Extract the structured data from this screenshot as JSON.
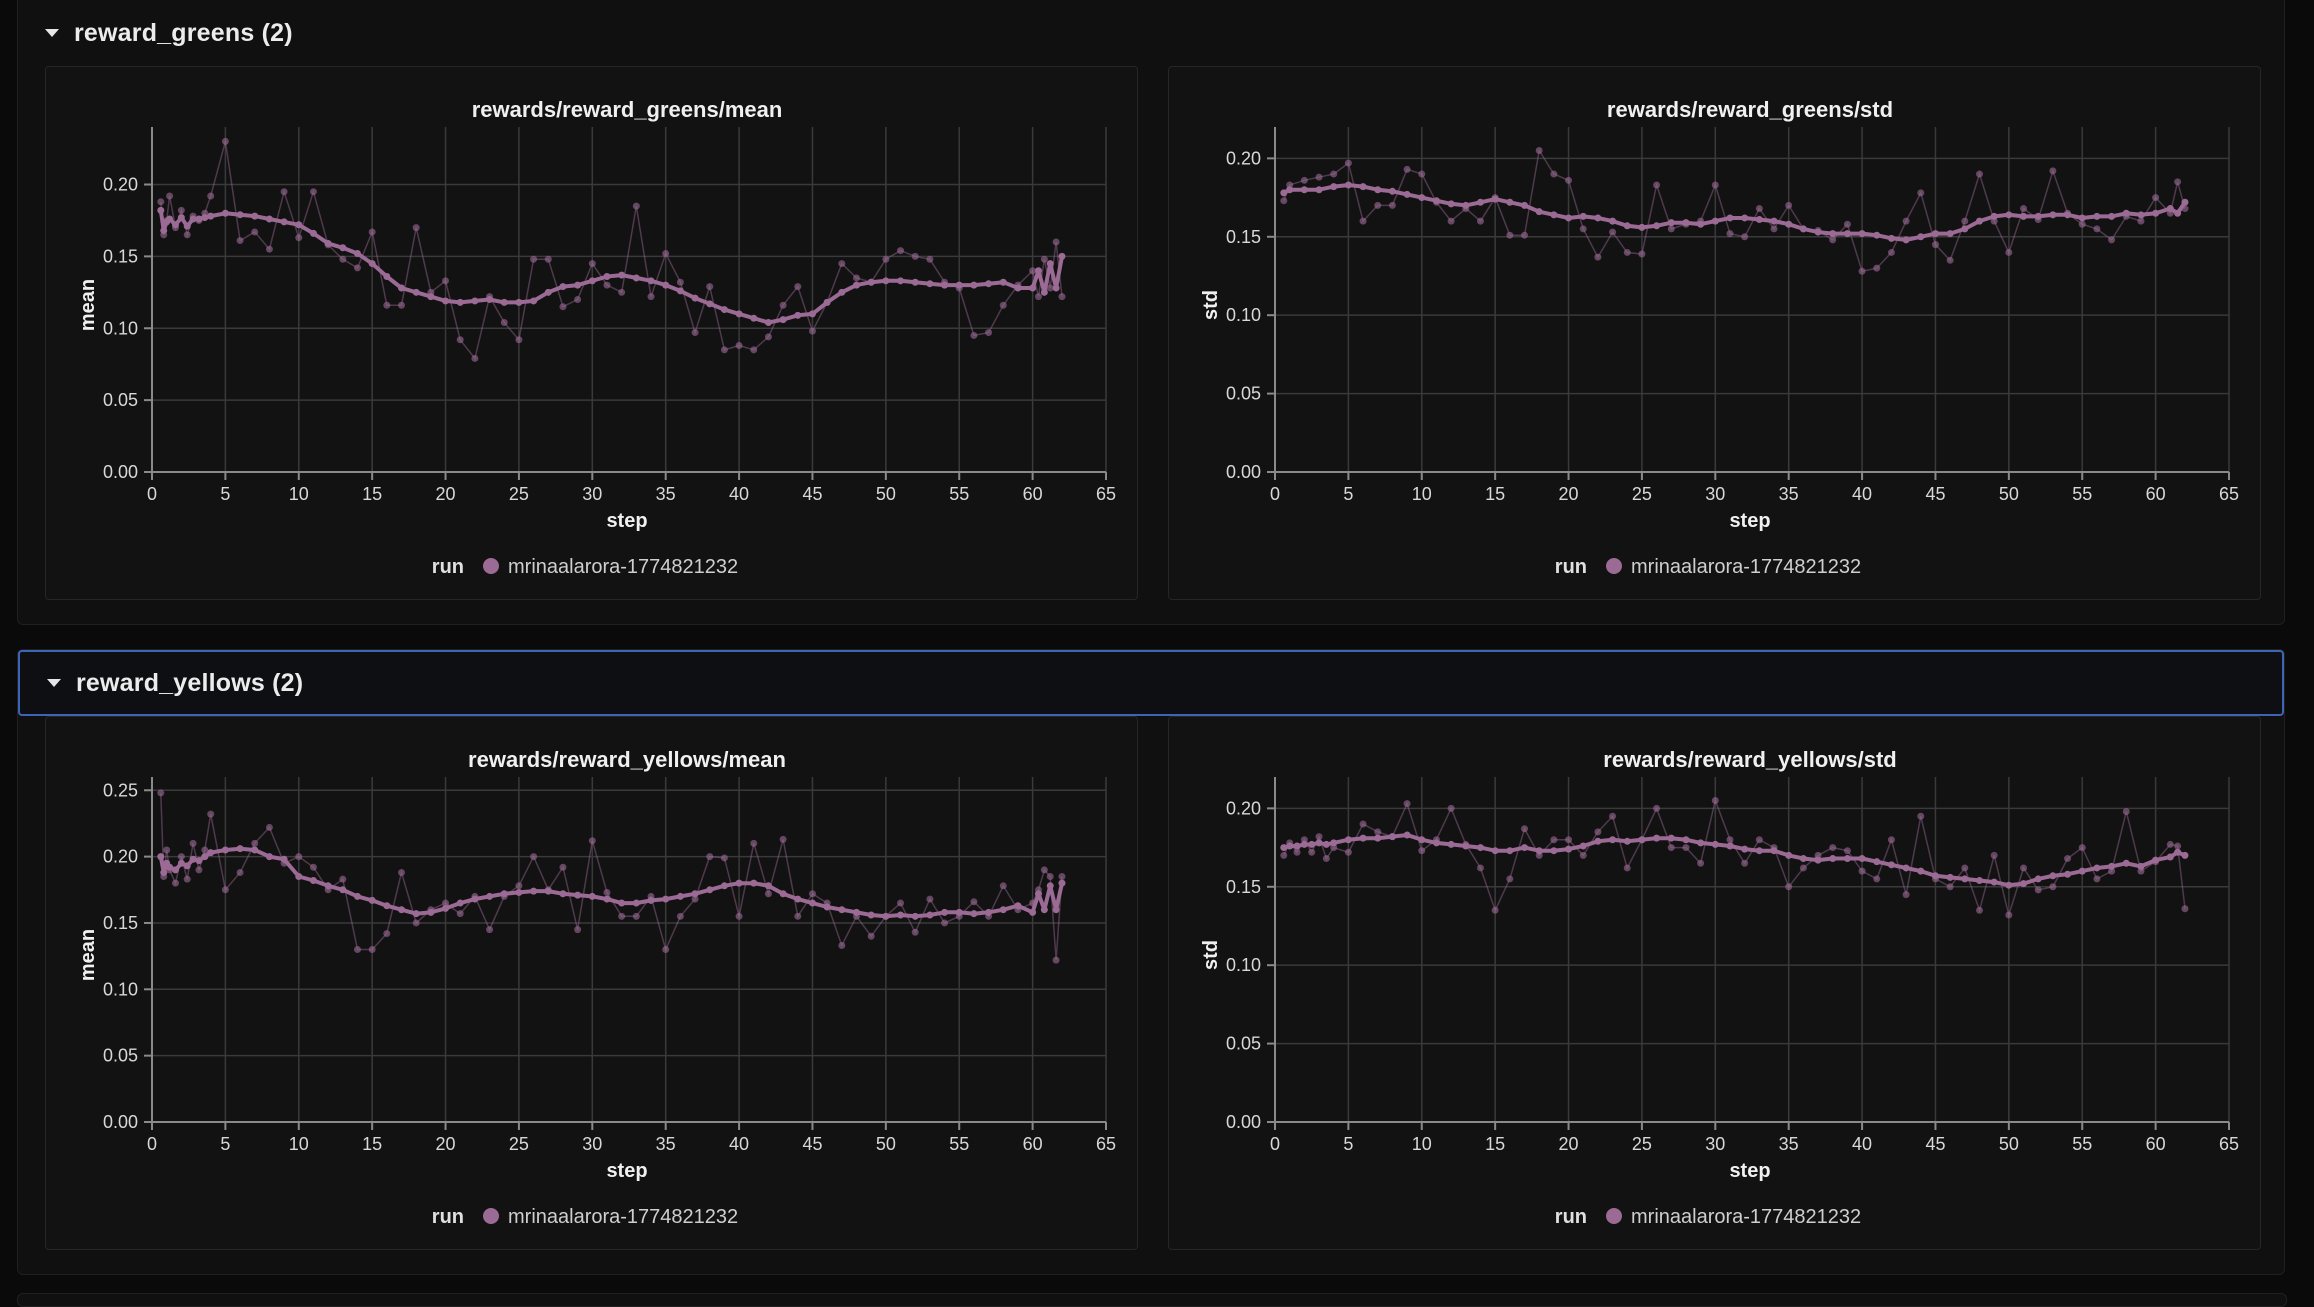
{
  "sections": [
    {
      "title": "reward_greens (2)",
      "charts": [
        {
          "title": "rewards/reward_greens/mean",
          "xlabel": "step",
          "ylabel": "mean",
          "legend_label": "run",
          "run_name": "mrinaalarora-1774821232",
          "accent_color": "#9b6b95"
        },
        {
          "title": "rewards/reward_greens/std",
          "xlabel": "step",
          "ylabel": "std",
          "legend_label": "run",
          "run_name": "mrinaalarora-1774821232",
          "accent_color": "#9b6b95"
        }
      ]
    },
    {
      "title": "reward_yellows (2)",
      "charts": [
        {
          "title": "rewards/reward_yellows/mean",
          "xlabel": "step",
          "ylabel": "mean",
          "legend_label": "run",
          "run_name": "mrinaalarora-1774821232",
          "accent_color": "#9b6b95"
        },
        {
          "title": "rewards/reward_yellows/std",
          "xlabel": "step",
          "ylabel": "std",
          "legend_label": "run",
          "run_name": "mrinaalarora-1774821232",
          "accent_color": "#9b6b95"
        }
      ]
    }
  ],
  "chart_data": [
    {
      "type": "line",
      "title": "rewards/reward_greens/mean",
      "xlabel": "step",
      "ylabel": "mean",
      "xlim": [
        0,
        65
      ],
      "ylim": [
        0,
        0.24
      ],
      "xticks": [
        0,
        5,
        10,
        15,
        20,
        25,
        30,
        35,
        40,
        45,
        50,
        55,
        60,
        65
      ],
      "yticks": [
        0.0,
        0.05,
        0.1,
        0.15,
        0.2
      ],
      "grid": true,
      "legend": "bottom",
      "series": [
        {
          "name": "mrinaalarora-1774821232",
          "x": [
            0.6,
            0.8,
            1,
            1.2,
            1.6,
            2,
            2.4,
            2.8,
            3.2,
            3.6,
            4,
            5,
            6,
            7,
            8,
            9,
            10,
            11,
            12,
            13,
            14,
            15,
            16,
            17,
            18,
            19,
            20,
            21,
            22,
            23,
            24,
            25,
            26,
            27,
            28,
            29,
            30,
            31,
            32,
            33,
            34,
            35,
            36,
            37,
            38,
            39,
            40,
            41,
            42,
            43,
            44,
            45,
            46,
            47,
            48,
            49,
            50,
            51,
            52,
            53,
            54,
            55,
            56,
            57,
            58,
            59,
            60,
            60.4,
            60.8,
            61.2,
            61.6,
            62
          ],
          "raw": [
            0.188,
            0.165,
            0.175,
            0.192,
            0.17,
            0.182,
            0.165,
            0.178,
            0.175,
            0.18,
            0.192,
            0.23,
            0.161,
            0.167,
            0.155,
            0.195,
            0.163,
            0.195,
            0.158,
            0.148,
            0.142,
            0.167,
            0.116,
            0.116,
            0.17,
            0.125,
            0.133,
            0.092,
            0.079,
            0.122,
            0.104,
            0.092,
            0.148,
            0.148,
            0.115,
            0.12,
            0.145,
            0.13,
            0.125,
            0.185,
            0.122,
            0.152,
            0.132,
            0.097,
            0.129,
            0.085,
            0.088,
            0.085,
            0.094,
            0.116,
            0.129,
            0.098,
            0.118,
            0.145,
            0.135,
            0.132,
            0.148,
            0.154,
            0.15,
            0.148,
            0.132,
            0.128,
            0.095,
            0.097,
            0.116,
            0.13,
            0.14,
            0.122,
            0.148,
            0.128,
            0.16,
            0.122
          ],
          "smoothed": [
            0.182,
            0.168,
            0.174,
            0.176,
            0.172,
            0.177,
            0.171,
            0.176,
            0.176,
            0.177,
            0.178,
            0.18,
            0.179,
            0.178,
            0.176,
            0.174,
            0.172,
            0.166,
            0.159,
            0.156,
            0.152,
            0.145,
            0.136,
            0.128,
            0.125,
            0.122,
            0.119,
            0.118,
            0.119,
            0.12,
            0.118,
            0.118,
            0.119,
            0.125,
            0.129,
            0.13,
            0.133,
            0.136,
            0.137,
            0.135,
            0.133,
            0.13,
            0.126,
            0.121,
            0.117,
            0.113,
            0.11,
            0.107,
            0.104,
            0.106,
            0.109,
            0.11,
            0.118,
            0.125,
            0.13,
            0.132,
            0.133,
            0.133,
            0.132,
            0.131,
            0.13,
            0.13,
            0.13,
            0.131,
            0.132,
            0.128,
            0.128,
            0.14,
            0.125,
            0.145,
            0.128,
            0.15
          ]
        }
      ]
    },
    {
      "type": "line",
      "title": "rewards/reward_greens/std",
      "xlabel": "step",
      "ylabel": "std",
      "xlim": [
        0,
        65
      ],
      "ylim": [
        0,
        0.22
      ],
      "xticks": [
        0,
        5,
        10,
        15,
        20,
        25,
        30,
        35,
        40,
        45,
        50,
        55,
        60,
        65
      ],
      "yticks": [
        0.0,
        0.05,
        0.1,
        0.15,
        0.2
      ],
      "grid": true,
      "legend": "bottom",
      "series": [
        {
          "name": "mrinaalarora-1774821232",
          "x": [
            0.6,
            1,
            2,
            3,
            4,
            5,
            6,
            7,
            8,
            9,
            10,
            11,
            12,
            13,
            14,
            15,
            16,
            17,
            18,
            19,
            20,
            21,
            22,
            23,
            24,
            25,
            26,
            27,
            28,
            29,
            30,
            31,
            32,
            33,
            34,
            35,
            36,
            37,
            38,
            39,
            40,
            41,
            42,
            43,
            44,
            45,
            46,
            47,
            48,
            49,
            50,
            51,
            52,
            53,
            54,
            55,
            56,
            57,
            58,
            59,
            60,
            61,
            61.5,
            62
          ],
          "raw": [
            0.173,
            0.183,
            0.186,
            0.188,
            0.19,
            0.197,
            0.16,
            0.17,
            0.17,
            0.193,
            0.19,
            0.172,
            0.16,
            0.168,
            0.16,
            0.175,
            0.151,
            0.151,
            0.205,
            0.19,
            0.186,
            0.155,
            0.137,
            0.153,
            0.14,
            0.139,
            0.183,
            0.155,
            0.158,
            0.16,
            0.183,
            0.152,
            0.15,
            0.168,
            0.155,
            0.17,
            0.155,
            0.154,
            0.148,
            0.158,
            0.128,
            0.13,
            0.14,
            0.16,
            0.178,
            0.145,
            0.135,
            0.16,
            0.19,
            0.16,
            0.14,
            0.168,
            0.161,
            0.192,
            0.165,
            0.158,
            0.155,
            0.148,
            0.163,
            0.16,
            0.175,
            0.165,
            0.185,
            0.168
          ],
          "smoothed": [
            0.178,
            0.18,
            0.18,
            0.18,
            0.182,
            0.183,
            0.182,
            0.18,
            0.179,
            0.177,
            0.175,
            0.173,
            0.171,
            0.17,
            0.172,
            0.174,
            0.172,
            0.17,
            0.166,
            0.164,
            0.162,
            0.163,
            0.162,
            0.16,
            0.157,
            0.156,
            0.157,
            0.159,
            0.159,
            0.158,
            0.16,
            0.162,
            0.162,
            0.161,
            0.16,
            0.158,
            0.155,
            0.153,
            0.152,
            0.152,
            0.152,
            0.151,
            0.149,
            0.148,
            0.15,
            0.152,
            0.152,
            0.155,
            0.16,
            0.163,
            0.164,
            0.163,
            0.163,
            0.164,
            0.164,
            0.162,
            0.163,
            0.163,
            0.165,
            0.164,
            0.165,
            0.168,
            0.165,
            0.172
          ]
        }
      ]
    },
    {
      "type": "line",
      "title": "rewards/reward_yellows/mean",
      "xlabel": "step",
      "ylabel": "mean",
      "xlim": [
        0,
        65
      ],
      "ylim": [
        0,
        0.26
      ],
      "xticks": [
        0,
        5,
        10,
        15,
        20,
        25,
        30,
        35,
        40,
        45,
        50,
        55,
        60,
        65
      ],
      "yticks": [
        0.0,
        0.05,
        0.1,
        0.15,
        0.2,
        0.25
      ],
      "grid": true,
      "legend": "bottom",
      "series": [
        {
          "name": "mrinaalarora-1774821232",
          "x": [
            0.6,
            0.8,
            1,
            1.2,
            1.6,
            2,
            2.4,
            2.8,
            3.2,
            3.6,
            4,
            5,
            6,
            7,
            8,
            9,
            10,
            11,
            12,
            13,
            14,
            15,
            16,
            17,
            18,
            19,
            20,
            21,
            22,
            23,
            24,
            25,
            26,
            27,
            28,
            29,
            30,
            31,
            32,
            33,
            34,
            35,
            36,
            37,
            38,
            39,
            40,
            41,
            42,
            43,
            44,
            45,
            46,
            47,
            48,
            49,
            50,
            51,
            52,
            53,
            54,
            55,
            56,
            57,
            58,
            59,
            60,
            60.4,
            60.8,
            61.2,
            61.6,
            62
          ],
          "raw": [
            0.248,
            0.185,
            0.205,
            0.19,
            0.18,
            0.2,
            0.183,
            0.21,
            0.19,
            0.205,
            0.232,
            0.175,
            0.188,
            0.21,
            0.222,
            0.195,
            0.2,
            0.192,
            0.175,
            0.183,
            0.13,
            0.13,
            0.142,
            0.188,
            0.15,
            0.16,
            0.165,
            0.157,
            0.17,
            0.145,
            0.17,
            0.178,
            0.2,
            0.175,
            0.192,
            0.145,
            0.212,
            0.173,
            0.155,
            0.155,
            0.17,
            0.13,
            0.155,
            0.168,
            0.2,
            0.199,
            0.155,
            0.21,
            0.172,
            0.213,
            0.155,
            0.172,
            0.165,
            0.133,
            0.155,
            0.14,
            0.155,
            0.165,
            0.143,
            0.168,
            0.15,
            0.155,
            0.166,
            0.155,
            0.178,
            0.16,
            0.165,
            0.175,
            0.19,
            0.185,
            0.122,
            0.185
          ],
          "smoothed": [
            0.2,
            0.188,
            0.195,
            0.192,
            0.19,
            0.195,
            0.193,
            0.198,
            0.197,
            0.2,
            0.203,
            0.205,
            0.206,
            0.205,
            0.2,
            0.198,
            0.185,
            0.182,
            0.178,
            0.175,
            0.17,
            0.167,
            0.163,
            0.16,
            0.157,
            0.158,
            0.161,
            0.165,
            0.168,
            0.17,
            0.172,
            0.173,
            0.174,
            0.174,
            0.172,
            0.171,
            0.17,
            0.168,
            0.165,
            0.165,
            0.167,
            0.168,
            0.17,
            0.172,
            0.175,
            0.178,
            0.18,
            0.18,
            0.178,
            0.172,
            0.168,
            0.165,
            0.162,
            0.16,
            0.158,
            0.156,
            0.155,
            0.156,
            0.155,
            0.156,
            0.158,
            0.158,
            0.157,
            0.158,
            0.16,
            0.163,
            0.158,
            0.172,
            0.16,
            0.178,
            0.16,
            0.18
          ]
        }
      ]
    },
    {
      "type": "line",
      "title": "rewards/reward_yellows/std",
      "xlabel": "step",
      "ylabel": "std",
      "xlim": [
        0,
        65
      ],
      "ylim": [
        0,
        0.22
      ],
      "xticks": [
        0,
        5,
        10,
        15,
        20,
        25,
        30,
        35,
        40,
        45,
        50,
        55,
        60,
        65
      ],
      "yticks": [
        0.0,
        0.05,
        0.1,
        0.15,
        0.2
      ],
      "grid": true,
      "legend": "bottom",
      "series": [
        {
          "name": "mrinaalarora-1774821232",
          "x": [
            0.6,
            1,
            1.5,
            2,
            2.5,
            3,
            3.5,
            4,
            5,
            6,
            7,
            8,
            9,
            10,
            11,
            12,
            13,
            14,
            15,
            16,
            17,
            18,
            19,
            20,
            21,
            22,
            23,
            24,
            25,
            26,
            27,
            28,
            29,
            30,
            31,
            32,
            33,
            34,
            35,
            36,
            37,
            38,
            39,
            40,
            41,
            42,
            43,
            44,
            45,
            46,
            47,
            48,
            49,
            50,
            51,
            52,
            53,
            54,
            55,
            56,
            57,
            58,
            59,
            60,
            61,
            61.5,
            62
          ],
          "raw": [
            0.17,
            0.178,
            0.172,
            0.18,
            0.172,
            0.182,
            0.168,
            0.175,
            0.172,
            0.19,
            0.185,
            0.182,
            0.203,
            0.173,
            0.18,
            0.2,
            0.177,
            0.162,
            0.135,
            0.155,
            0.187,
            0.17,
            0.18,
            0.18,
            0.17,
            0.185,
            0.195,
            0.162,
            0.18,
            0.2,
            0.175,
            0.175,
            0.165,
            0.205,
            0.18,
            0.165,
            0.18,
            0.175,
            0.15,
            0.162,
            0.17,
            0.175,
            0.173,
            0.16,
            0.155,
            0.18,
            0.145,
            0.195,
            0.155,
            0.15,
            0.162,
            0.135,
            0.17,
            0.132,
            0.162,
            0.148,
            0.15,
            0.168,
            0.175,
            0.155,
            0.16,
            0.198,
            0.16,
            0.166,
            0.177,
            0.176,
            0.136
          ],
          "smoothed": [
            0.175,
            0.176,
            0.176,
            0.177,
            0.177,
            0.178,
            0.177,
            0.178,
            0.18,
            0.181,
            0.181,
            0.182,
            0.183,
            0.18,
            0.178,
            0.177,
            0.176,
            0.175,
            0.173,
            0.173,
            0.175,
            0.173,
            0.173,
            0.174,
            0.176,
            0.179,
            0.18,
            0.179,
            0.18,
            0.181,
            0.181,
            0.18,
            0.178,
            0.177,
            0.176,
            0.174,
            0.173,
            0.173,
            0.17,
            0.168,
            0.167,
            0.168,
            0.168,
            0.168,
            0.166,
            0.164,
            0.162,
            0.16,
            0.157,
            0.156,
            0.155,
            0.154,
            0.153,
            0.151,
            0.152,
            0.155,
            0.157,
            0.158,
            0.16,
            0.162,
            0.163,
            0.165,
            0.163,
            0.167,
            0.169,
            0.172,
            0.17
          ]
        }
      ]
    }
  ]
}
